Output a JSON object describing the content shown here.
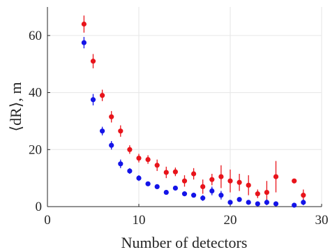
{
  "chart_data": {
    "type": "scatter",
    "title": "",
    "xlabel": "Number of detectors",
    "ylabel": "⟨dR⟩, m",
    "xlim": [
      0,
      30
    ],
    "ylim": [
      0,
      70
    ],
    "xticks": [
      0,
      10,
      20,
      30
    ],
    "yticks": [
      0,
      20,
      40,
      60
    ],
    "grid": true,
    "legend": "none",
    "series": [
      {
        "color": "#e8141b",
        "points": [
          {
            "x": 4,
            "y": 64,
            "err": 3
          },
          {
            "x": 5,
            "y": 51,
            "err": 2.5
          },
          {
            "x": 6,
            "y": 39,
            "err": 2
          },
          {
            "x": 7,
            "y": 31.5,
            "err": 2
          },
          {
            "x": 8,
            "y": 26.5,
            "err": 2
          },
          {
            "x": 9,
            "y": 20,
            "err": 1.5
          },
          {
            "x": 10,
            "y": 17,
            "err": 1.5
          },
          {
            "x": 11,
            "y": 16.5,
            "err": 1.5
          },
          {
            "x": 12,
            "y": 14.5,
            "err": 2
          },
          {
            "x": 13,
            "y": 12,
            "err": 2
          },
          {
            "x": 14,
            "y": 12.2,
            "err": 1.5
          },
          {
            "x": 15,
            "y": 9,
            "err": 2
          },
          {
            "x": 16,
            "y": 11.5,
            "err": 2
          },
          {
            "x": 17,
            "y": 7,
            "err": 2.5
          },
          {
            "x": 18,
            "y": 9.5,
            "err": 2
          },
          {
            "x": 19,
            "y": 10.5,
            "err": 4
          },
          {
            "x": 20,
            "y": 9,
            "err": 4
          },
          {
            "x": 21,
            "y": 8.5,
            "err": 3
          },
          {
            "x": 22,
            "y": 7.5,
            "err": 3.5
          },
          {
            "x": 23,
            "y": 4.5,
            "err": 1.5
          },
          {
            "x": 24,
            "y": 5,
            "err": 4
          },
          {
            "x": 25,
            "y": 10.5,
            "err": 5.5
          },
          {
            "x": 27,
            "y": 9,
            "err": 0
          },
          {
            "x": 28,
            "y": 4,
            "err": 2
          }
        ]
      },
      {
        "color": "#1414e8",
        "points": [
          {
            "x": 4,
            "y": 57.5,
            "err": 2
          },
          {
            "x": 5,
            "y": 37.5,
            "err": 2
          },
          {
            "x": 6,
            "y": 26.5,
            "err": 1.5
          },
          {
            "x": 7,
            "y": 21.5,
            "err": 1.5
          },
          {
            "x": 8,
            "y": 15,
            "err": 1.5
          },
          {
            "x": 9,
            "y": 12.5,
            "err": 1
          },
          {
            "x": 10,
            "y": 10,
            "err": 1
          },
          {
            "x": 11,
            "y": 8,
            "err": 0.8
          },
          {
            "x": 12,
            "y": 7,
            "err": 0.8
          },
          {
            "x": 13,
            "y": 5,
            "err": 0.8
          },
          {
            "x": 14,
            "y": 6.5,
            "err": 0.8
          },
          {
            "x": 15,
            "y": 4.5,
            "err": 0.8
          },
          {
            "x": 16,
            "y": 4,
            "err": 0.8
          },
          {
            "x": 17,
            "y": 3,
            "err": 1
          },
          {
            "x": 18,
            "y": 5.5,
            "err": 1.5
          },
          {
            "x": 19,
            "y": 4,
            "err": 1.5
          },
          {
            "x": 20,
            "y": 1.5,
            "err": 0.5
          },
          {
            "x": 21,
            "y": 2.5,
            "err": 0.5
          },
          {
            "x": 22,
            "y": 1.5,
            "err": 0.5
          },
          {
            "x": 23,
            "y": 1,
            "err": 0.5
          },
          {
            "x": 24,
            "y": 1.5,
            "err": 1
          },
          {
            "x": 25,
            "y": 1,
            "err": 0.5
          },
          {
            "x": 27,
            "y": 0.5,
            "err": 0.5
          },
          {
            "x": 28,
            "y": 1.5,
            "err": 1
          }
        ]
      }
    ]
  }
}
